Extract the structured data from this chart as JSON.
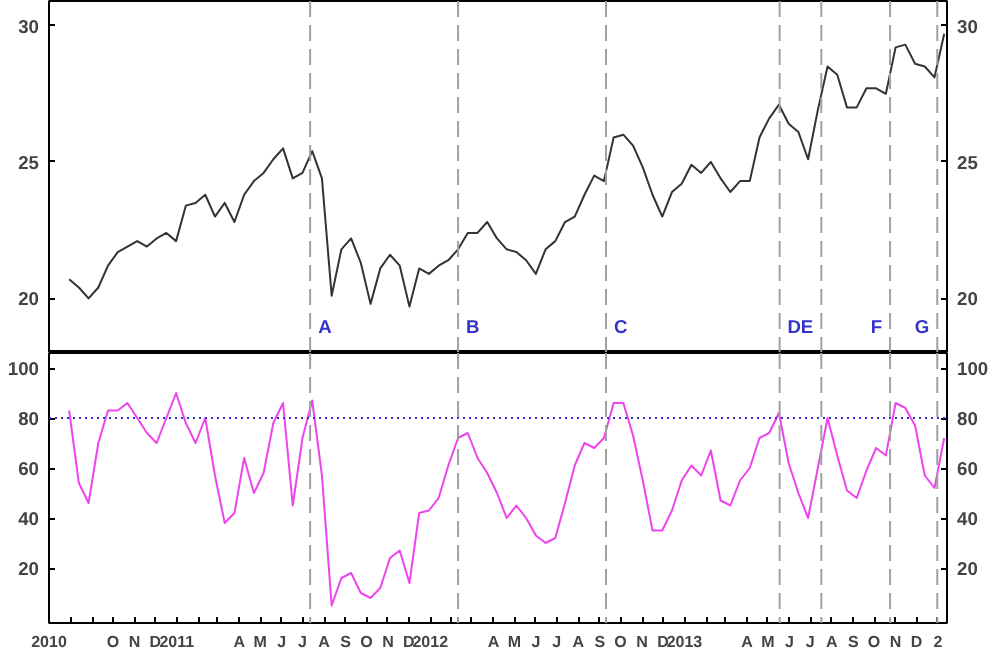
{
  "chart_data": [
    {
      "type": "line",
      "x": [
        "2010-07-30",
        "2010-08-13",
        "2010-08-27",
        "2010-09-10",
        "2010-09-24",
        "2010-10-08",
        "2010-10-22",
        "2010-11-05",
        "2010-11-19",
        "2010-12-03",
        "2010-12-17",
        "2010-12-31",
        "2011-01-14",
        "2011-01-28",
        "2011-02-11",
        "2011-02-25",
        "2011-03-11",
        "2011-03-25",
        "2011-04-08",
        "2011-04-22",
        "2011-05-06",
        "2011-05-20",
        "2011-06-03",
        "2011-06-17",
        "2011-07-01",
        "2011-07-15",
        "2011-07-29",
        "2011-08-12",
        "2011-08-26",
        "2011-09-09",
        "2011-09-23",
        "2011-10-07",
        "2011-10-21",
        "2011-11-04",
        "2011-11-18",
        "2011-12-02",
        "2011-12-16",
        "2011-12-30",
        "2012-01-13",
        "2012-01-27",
        "2012-02-10",
        "2012-02-24",
        "2012-03-09",
        "2012-03-23",
        "2012-04-06",
        "2012-04-20",
        "2012-05-04",
        "2012-05-18",
        "2012-06-01",
        "2012-06-15",
        "2012-06-29",
        "2012-07-13",
        "2012-07-27",
        "2012-08-10",
        "2012-08-24",
        "2012-09-07",
        "2012-09-21",
        "2012-10-05",
        "2012-10-19",
        "2012-11-02",
        "2012-11-16",
        "2012-11-30",
        "2012-12-14",
        "2012-12-28",
        "2013-01-11",
        "2013-01-25",
        "2013-02-08",
        "2013-02-22",
        "2013-03-08",
        "2013-03-22",
        "2013-04-05",
        "2013-04-19",
        "2013-05-03",
        "2013-05-17",
        "2013-05-31",
        "2013-06-14",
        "2013-06-28",
        "2013-07-12",
        "2013-07-26",
        "2013-08-09",
        "2013-08-23",
        "2013-09-06",
        "2013-09-20",
        "2013-10-04",
        "2013-10-18",
        "2013-11-01",
        "2013-11-15",
        "2013-11-29",
        "2013-12-13",
        "2013-12-27",
        "2014-01-10"
      ],
      "series": [
        {
          "color": "#333333",
          "values": [
            20.7,
            20.4,
            20.0,
            20.4,
            21.2,
            21.7,
            21.9,
            22.1,
            21.9,
            22.2,
            22.4,
            22.1,
            23.4,
            23.5,
            23.8,
            23.0,
            23.5,
            22.8,
            23.8,
            24.3,
            24.6,
            25.1,
            25.5,
            24.4,
            24.6,
            25.4,
            24.4,
            20.1,
            21.8,
            22.2,
            21.3,
            19.8,
            21.1,
            21.6,
            21.2,
            19.7,
            21.1,
            20.9,
            21.2,
            21.4,
            21.8,
            22.4,
            22.4,
            22.8,
            22.2,
            21.8,
            21.7,
            21.4,
            20.9,
            21.8,
            22.1,
            22.8,
            23.0,
            23.8,
            24.5,
            24.3,
            25.9,
            26.0,
            25.6,
            24.8,
            23.8,
            23.0,
            23.9,
            24.2,
            24.9,
            24.6,
            25.0,
            24.4,
            23.9,
            24.3,
            24.3,
            25.9,
            26.6,
            27.1,
            26.4,
            26.1,
            25.1,
            26.9,
            28.5,
            28.2,
            27.0,
            27.0,
            27.7,
            27.7,
            27.5,
            29.2,
            29.3,
            28.6,
            28.5,
            28.1,
            29.7
          ]
        }
      ],
      "xlim": [
        "2010-07-01",
        "2014-01-14"
      ],
      "ylim": [
        18,
        30.9
      ],
      "yticks": [
        20,
        25,
        30
      ],
      "y2lim": [
        18,
        30.9
      ],
      "y2ticks": [
        20,
        25,
        30
      ],
      "tick_labels": "y",
      "grid": false,
      "line_style": "solid",
      "ref_lines": [
        {
          "axis": "x",
          "value": "2011-07-12",
          "label": "A",
          "color": "#a0a0a0",
          "line_style": "dashed"
        },
        {
          "axis": "x",
          "value": "2012-02-10",
          "label": "B",
          "color": "#a0a0a0",
          "line_style": "dashed"
        },
        {
          "axis": "x",
          "value": "2012-09-10",
          "label": "C",
          "color": "#a0a0a0",
          "line_style": "dashed"
        },
        {
          "axis": "x",
          "value": "2013-05-18",
          "label": "D",
          "color": "#a0a0a0",
          "line_style": "dashed"
        },
        {
          "axis": "x",
          "value": "2013-07-17",
          "label": "E",
          "color": "#a0a0a0",
          "line_style": "dashed"
        },
        {
          "axis": "x",
          "value": "2013-10-24",
          "label": "F",
          "color": "#a0a0a0",
          "line_style": "dashed"
        },
        {
          "axis": "x",
          "value": "2013-12-31",
          "label": "G",
          "color": "#a0a0a0",
          "line_style": "dashed"
        }
      ]
    },
    {
      "type": "line",
      "x": [
        "2010-07-30",
        "2010-08-13",
        "2010-08-27",
        "2010-09-10",
        "2010-09-24",
        "2010-10-08",
        "2010-10-22",
        "2010-11-05",
        "2010-11-19",
        "2010-12-03",
        "2010-12-17",
        "2010-12-31",
        "2011-01-14",
        "2011-01-28",
        "2011-02-11",
        "2011-02-25",
        "2011-03-11",
        "2011-03-25",
        "2011-04-08",
        "2011-04-22",
        "2011-05-06",
        "2011-05-20",
        "2011-06-03",
        "2011-06-17",
        "2011-07-01",
        "2011-07-15",
        "2011-07-29",
        "2011-08-12",
        "2011-08-26",
        "2011-09-09",
        "2011-09-23",
        "2011-10-07",
        "2011-10-21",
        "2011-11-04",
        "2011-11-18",
        "2011-12-02",
        "2011-12-16",
        "2011-12-30",
        "2012-01-13",
        "2012-01-27",
        "2012-02-10",
        "2012-02-24",
        "2012-03-09",
        "2012-03-23",
        "2012-04-06",
        "2012-04-20",
        "2012-05-04",
        "2012-05-18",
        "2012-06-01",
        "2012-06-15",
        "2012-06-29",
        "2012-07-13",
        "2012-07-27",
        "2012-08-10",
        "2012-08-24",
        "2012-09-07",
        "2012-09-21",
        "2012-10-05",
        "2012-10-19",
        "2012-11-02",
        "2012-11-16",
        "2012-11-30",
        "2012-12-14",
        "2012-12-28",
        "2013-01-11",
        "2013-01-25",
        "2013-02-08",
        "2013-02-22",
        "2013-03-08",
        "2013-03-22",
        "2013-04-05",
        "2013-04-19",
        "2013-05-03",
        "2013-05-17",
        "2013-05-31",
        "2013-06-14",
        "2013-06-28",
        "2013-07-12",
        "2013-07-26",
        "2013-08-09",
        "2013-08-23",
        "2013-09-06",
        "2013-09-20",
        "2013-10-04",
        "2013-10-18",
        "2013-11-01",
        "2013-11-15",
        "2013-11-29",
        "2013-12-13",
        "2013-12-27",
        "2014-01-10"
      ],
      "series": [
        {
          "color": "#ee44ee",
          "values": [
            83,
            54,
            46,
            70,
            83,
            83,
            86,
            80,
            74,
            70,
            80,
            90,
            78,
            70,
            80,
            57,
            38,
            42,
            64,
            50,
            58,
            78,
            86,
            45,
            72,
            87,
            57,
            5,
            16,
            18,
            10,
            8,
            12,
            24,
            27,
            14,
            42,
            43,
            48,
            61,
            72,
            74,
            64,
            58,
            50,
            40,
            45,
            40,
            33,
            30,
            32,
            46,
            61,
            70,
            68,
            72,
            86,
            86,
            73,
            55,
            35,
            35,
            43,
            55,
            61,
            57,
            67,
            47,
            45,
            55,
            60,
            72,
            74,
            82,
            62,
            50,
            40,
            60,
            80,
            65,
            51,
            48,
            59,
            68,
            65,
            86,
            84,
            77,
            57,
            52,
            72
          ]
        }
      ],
      "xlim": [
        "2010-07-01",
        "2014-01-14"
      ],
      "ylim": [
        -2,
        106
      ],
      "yticks": [
        20,
        40,
        60,
        80,
        100
      ],
      "y2lim": [
        -2,
        106
      ],
      "y2ticks": [
        20,
        40,
        60,
        80,
        100
      ],
      "grid": false,
      "line_style": "solid",
      "xticks": [
        {
          "value": "2010-07",
          "label": "2010"
        },
        {
          "value": "2010-08",
          "label": null
        },
        {
          "value": "2010-09",
          "label": null
        },
        {
          "value": "2010-10",
          "label": "O"
        },
        {
          "value": "2010-11",
          "label": "N"
        },
        {
          "value": "2010-12",
          "label": "D"
        },
        {
          "value": "2011-01",
          "label": "2011"
        },
        {
          "value": "2011-02",
          "label": null
        },
        {
          "value": "2011-03",
          "label": null
        },
        {
          "value": "2011-04",
          "label": "A"
        },
        {
          "value": "2011-05",
          "label": "M"
        },
        {
          "value": "2011-06",
          "label": "J"
        },
        {
          "value": "2011-07",
          "label": "J"
        },
        {
          "value": "2011-08",
          "label": "A"
        },
        {
          "value": "2011-09",
          "label": "S"
        },
        {
          "value": "2011-10",
          "label": "O"
        },
        {
          "value": "2011-11",
          "label": "N"
        },
        {
          "value": "2011-12",
          "label": "D"
        },
        {
          "value": "2012-01",
          "label": "2012"
        },
        {
          "value": "2012-02",
          "label": null
        },
        {
          "value": "2012-03",
          "label": null
        },
        {
          "value": "2012-04",
          "label": "A"
        },
        {
          "value": "2012-05",
          "label": "M"
        },
        {
          "value": "2012-06",
          "label": "J"
        },
        {
          "value": "2012-07",
          "label": "J"
        },
        {
          "value": "2012-08",
          "label": "A"
        },
        {
          "value": "2012-09",
          "label": "S"
        },
        {
          "value": "2012-10",
          "label": "O"
        },
        {
          "value": "2012-11",
          "label": "N"
        },
        {
          "value": "2012-12",
          "label": "D"
        },
        {
          "value": "2013-01",
          "label": "2013"
        },
        {
          "value": "2013-02",
          "label": null
        },
        {
          "value": "2013-03",
          "label": null
        },
        {
          "value": "2013-04",
          "label": "A"
        },
        {
          "value": "2013-05",
          "label": "M"
        },
        {
          "value": "2013-06",
          "label": "J"
        },
        {
          "value": "2013-07",
          "label": "J"
        },
        {
          "value": "2013-08",
          "label": "A"
        },
        {
          "value": "2013-09",
          "label": "S"
        },
        {
          "value": "2013-10",
          "label": "O"
        },
        {
          "value": "2013-11",
          "label": "N"
        },
        {
          "value": "2013-12",
          "label": "D"
        },
        {
          "value": "2014-01",
          "label": "2"
        }
      ],
      "ref_lines": [
        {
          "axis": "y",
          "value": 80,
          "color": "#3333cc",
          "line_style": "dotted"
        },
        {
          "axis": "x",
          "value": "2011-07-12",
          "color": "#a0a0a0",
          "line_style": "dashed"
        },
        {
          "axis": "x",
          "value": "2012-02-10",
          "color": "#a0a0a0",
          "line_style": "dashed"
        },
        {
          "axis": "x",
          "value": "2012-09-10",
          "color": "#a0a0a0",
          "line_style": "dashed"
        },
        {
          "axis": "x",
          "value": "2013-05-18",
          "color": "#a0a0a0",
          "line_style": "dashed"
        },
        {
          "axis": "x",
          "value": "2013-07-17",
          "color": "#a0a0a0",
          "line_style": "dashed"
        },
        {
          "axis": "x",
          "value": "2013-10-24",
          "color": "#a0a0a0",
          "line_style": "dashed"
        },
        {
          "axis": "x",
          "value": "2013-12-31",
          "color": "#a0a0a0",
          "line_style": "dashed"
        }
      ]
    }
  ]
}
